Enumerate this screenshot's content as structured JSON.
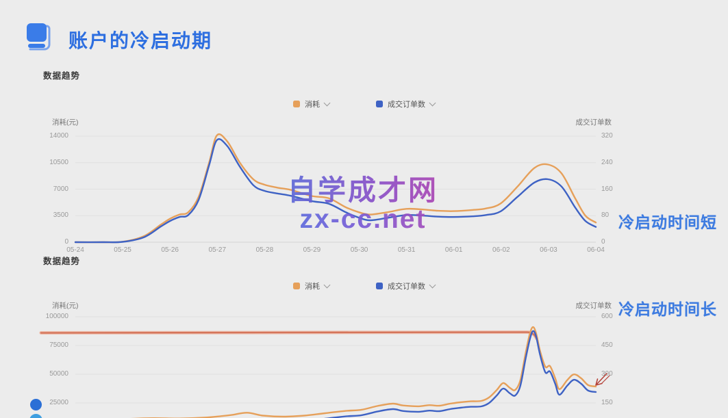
{
  "theme": {
    "bg": "#ececec",
    "accent": "#2e6fe0",
    "annotation_blue": "#3d7be0",
    "series_orange": "#e6a05a",
    "series_blue": "#3e62c4",
    "flat_line_red": "#d4755b",
    "arrow_red": "#b5433a",
    "grid": "#e0e0e0",
    "baseline": "#d4d4d4",
    "dot_dark": "#2b6fd6",
    "dot_light": "#3f9fe0"
  },
  "header": {
    "title": "账户的冷启动期"
  },
  "watermark": {
    "line1": "自学成才网",
    "line2": "zx-cc.net"
  },
  "chart_data": [
    {
      "type": "line",
      "title": "数据趋势",
      "annotation": "冷启动时间短",
      "legend_position": "top-center",
      "grid": true,
      "categories": [
        "05-24",
        "05-25",
        "05-26",
        "05-27",
        "05-28",
        "05-29",
        "05-30",
        "05-31",
        "06-01",
        "06-02",
        "06-03",
        "06-04"
      ],
      "left_axis": {
        "title": "消耗(元)",
        "ticks": [
          14000,
          10500,
          7000,
          3500,
          0
        ],
        "range": [
          0,
          14000
        ]
      },
      "right_axis": {
        "title": "成交订单数",
        "ticks": [
          320,
          240,
          160,
          80,
          0
        ],
        "range": [
          0,
          320
        ]
      },
      "x_axis_visible": true,
      "series": [
        {
          "name": "消耗",
          "axis": "left",
          "color": "#e6a05a",
          "values": [
            0,
            60,
            3400,
            14100,
            7600,
            6100,
            3800,
            4400,
            4100,
            5100,
            10250,
            2600
          ],
          "points": [
            [
              0,
              0
            ],
            [
              0.053,
              0
            ],
            [
              0.091,
              60
            ],
            [
              0.132,
              800
            ],
            [
              0.164,
              2300
            ],
            [
              0.182,
              3100
            ],
            [
              0.2,
              3650
            ],
            [
              0.217,
              3950
            ],
            [
              0.237,
              6000
            ],
            [
              0.257,
              10500
            ],
            [
              0.272,
              14100
            ],
            [
              0.292,
              13300
            ],
            [
              0.316,
              10500
            ],
            [
              0.342,
              8300
            ],
            [
              0.363,
              7600
            ],
            [
              0.388,
              7200
            ],
            [
              0.414,
              6900
            ],
            [
              0.454,
              6100
            ],
            [
              0.487,
              5800
            ],
            [
              0.52,
              4600
            ],
            [
              0.545,
              3950
            ],
            [
              0.566,
              3650
            ],
            [
              0.599,
              3950
            ],
            [
              0.636,
              4400
            ],
            [
              0.671,
              4300
            ],
            [
              0.697,
              4150
            ],
            [
              0.726,
              4100
            ],
            [
              0.763,
              4250
            ],
            [
              0.789,
              4450
            ],
            [
              0.817,
              5100
            ],
            [
              0.849,
              7300
            ],
            [
              0.882,
              9800
            ],
            [
              0.908,
              10250
            ],
            [
              0.934,
              9100
            ],
            [
              0.961,
              5700
            ],
            [
              0.98,
              3500
            ],
            [
              1,
              2600
            ]
          ]
        },
        {
          "name": "成交订单数",
          "axis": "right",
          "color": "#3e62c4",
          "values": [
            0,
            1,
            70,
            308,
            155,
            124,
            67,
            82,
            76,
            93,
            190,
            46
          ],
          "points": [
            [
              0,
              0
            ],
            [
              0.053,
              0
            ],
            [
              0.091,
              1
            ],
            [
              0.132,
              15
            ],
            [
              0.164,
              47
            ],
            [
              0.182,
              64
            ],
            [
              0.2,
              76
            ],
            [
              0.217,
              82
            ],
            [
              0.237,
              128
            ],
            [
              0.257,
              232
            ],
            [
              0.272,
              308
            ],
            [
              0.292,
              290
            ],
            [
              0.316,
              228
            ],
            [
              0.342,
              172
            ],
            [
              0.363,
              155
            ],
            [
              0.388,
              147
            ],
            [
              0.414,
              140
            ],
            [
              0.454,
              124
            ],
            [
              0.487,
              116
            ],
            [
              0.52,
              90
            ],
            [
              0.545,
              74
            ],
            [
              0.566,
              66
            ],
            [
              0.599,
              73
            ],
            [
              0.636,
              82
            ],
            [
              0.671,
              80
            ],
            [
              0.697,
              77
            ],
            [
              0.726,
              76
            ],
            [
              0.763,
              78
            ],
            [
              0.789,
              82
            ],
            [
              0.817,
              93
            ],
            [
              0.849,
              136
            ],
            [
              0.882,
              180
            ],
            [
              0.908,
              190
            ],
            [
              0.934,
              168
            ],
            [
              0.961,
              103
            ],
            [
              0.98,
              64
            ],
            [
              1,
              46
            ]
          ]
        }
      ]
    },
    {
      "type": "line",
      "title": "数据趋势",
      "annotation": "冷启动时间长",
      "legend_position": "top-center",
      "grid": true,
      "left_axis": {
        "title": "消耗(元)",
        "ticks": [
          100000,
          75000,
          50000,
          25000
        ],
        "range": [
          0,
          100000
        ]
      },
      "right_axis": {
        "title": "成交订单数",
        "ticks": [
          600,
          450,
          300,
          150
        ],
        "range": [
          0,
          600
        ]
      },
      "x_axis_visible": false,
      "flat_annotation_line": {
        "value_left": 86000,
        "x_start_frac": -0.066,
        "x_end_frac": 0.886
      },
      "arrow_annotation": true,
      "series": [
        {
          "name": "消耗",
          "axis": "left",
          "color": "#e6a05a",
          "points": [
            [
              0,
              8100
            ],
            [
              0.05,
              9800
            ],
            [
              0.1,
              11100
            ],
            [
              0.15,
              11800
            ],
            [
              0.2,
              11500
            ],
            [
              0.25,
              12300
            ],
            [
              0.28,
              13500
            ],
            [
              0.3,
              14500
            ],
            [
              0.33,
              16500
            ],
            [
              0.36,
              14000
            ],
            [
              0.4,
              13100
            ],
            [
              0.44,
              14000
            ],
            [
              0.48,
              16100
            ],
            [
              0.52,
              18100
            ],
            [
              0.55,
              19100
            ],
            [
              0.58,
              22300
            ],
            [
              0.61,
              24400
            ],
            [
              0.63,
              22800
            ],
            [
              0.66,
              22100
            ],
            [
              0.68,
              23100
            ],
            [
              0.7,
              22600
            ],
            [
              0.72,
              24400
            ],
            [
              0.74,
              25600
            ],
            [
              0.76,
              26400
            ],
            [
              0.78,
              26800
            ],
            [
              0.795,
              29800
            ],
            [
              0.81,
              36400
            ],
            [
              0.822,
              42300
            ],
            [
              0.835,
              38100
            ],
            [
              0.845,
              36300
            ],
            [
              0.855,
              44800
            ],
            [
              0.865,
              68100
            ],
            [
              0.873,
              84800
            ],
            [
              0.879,
              91000
            ],
            [
              0.885,
              86000
            ],
            [
              0.893,
              70000
            ],
            [
              0.903,
              56500
            ],
            [
              0.912,
              57100
            ],
            [
              0.922,
              46500
            ],
            [
              0.93,
              37000
            ],
            [
              0.945,
              44800
            ],
            [
              0.958,
              49900
            ],
            [
              0.972,
              46400
            ],
            [
              0.985,
              40600
            ],
            [
              1,
              39300
            ]
          ]
        },
        {
          "name": "成交订单数",
          "axis": "right",
          "color": "#3e62c4",
          "points": [
            [
              0,
              20
            ],
            [
              0.05,
              30
            ],
            [
              0.1,
              38
            ],
            [
              0.15,
              42
            ],
            [
              0.2,
              40
            ],
            [
              0.25,
              45
            ],
            [
              0.28,
              52
            ],
            [
              0.3,
              58
            ],
            [
              0.33,
              62
            ],
            [
              0.36,
              55
            ],
            [
              0.4,
              50
            ],
            [
              0.44,
              55
            ],
            [
              0.48,
              68
            ],
            [
              0.52,
              80
            ],
            [
              0.55,
              86
            ],
            [
              0.58,
              105
            ],
            [
              0.61,
              118
            ],
            [
              0.63,
              108
            ],
            [
              0.66,
              104
            ],
            [
              0.68,
              110
            ],
            [
              0.7,
              107
            ],
            [
              0.72,
              118
            ],
            [
              0.74,
              125
            ],
            [
              0.76,
              130
            ],
            [
              0.78,
              132
            ],
            [
              0.795,
              150
            ],
            [
              0.81,
              190
            ],
            [
              0.822,
              225
            ],
            [
              0.835,
              200
            ],
            [
              0.845,
              189
            ],
            [
              0.855,
              240
            ],
            [
              0.865,
              380
            ],
            [
              0.873,
              480
            ],
            [
              0.879,
              525
            ],
            [
              0.885,
              500
            ],
            [
              0.893,
              400
            ],
            [
              0.903,
              310
            ],
            [
              0.912,
              314
            ],
            [
              0.922,
              250
            ],
            [
              0.93,
              193
            ],
            [
              0.945,
              240
            ],
            [
              0.958,
              271
            ],
            [
              0.972,
              250
            ],
            [
              0.985,
              215
            ],
            [
              1,
              207
            ]
          ]
        }
      ]
    }
  ]
}
